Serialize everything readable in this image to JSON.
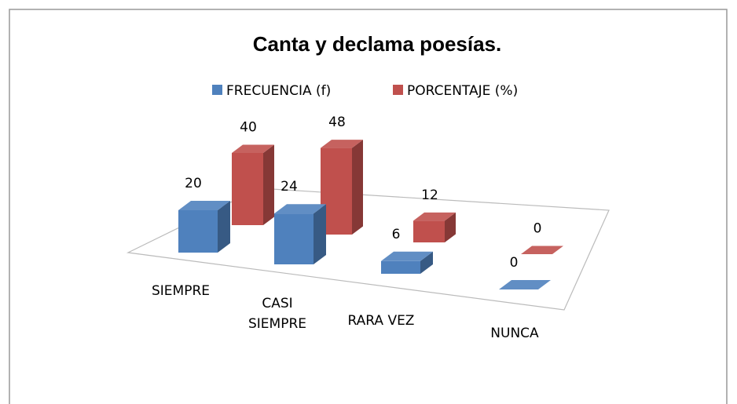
{
  "chart_data": {
    "type": "bar3d",
    "title": "Canta y declama poesías.",
    "categories": [
      "SIEMPRE",
      "CASI SIEMPRE",
      "RARA VEZ",
      "NUNCA"
    ],
    "series": [
      {
        "name": "FRECUENCIA (f)",
        "color": "#4f81bd",
        "values": [
          20,
          24,
          6,
          0
        ]
      },
      {
        "name": "PORCENTAJE (%)",
        "color": "#c0504d",
        "values": [
          40,
          48,
          12,
          0
        ]
      }
    ],
    "legend": "top"
  }
}
